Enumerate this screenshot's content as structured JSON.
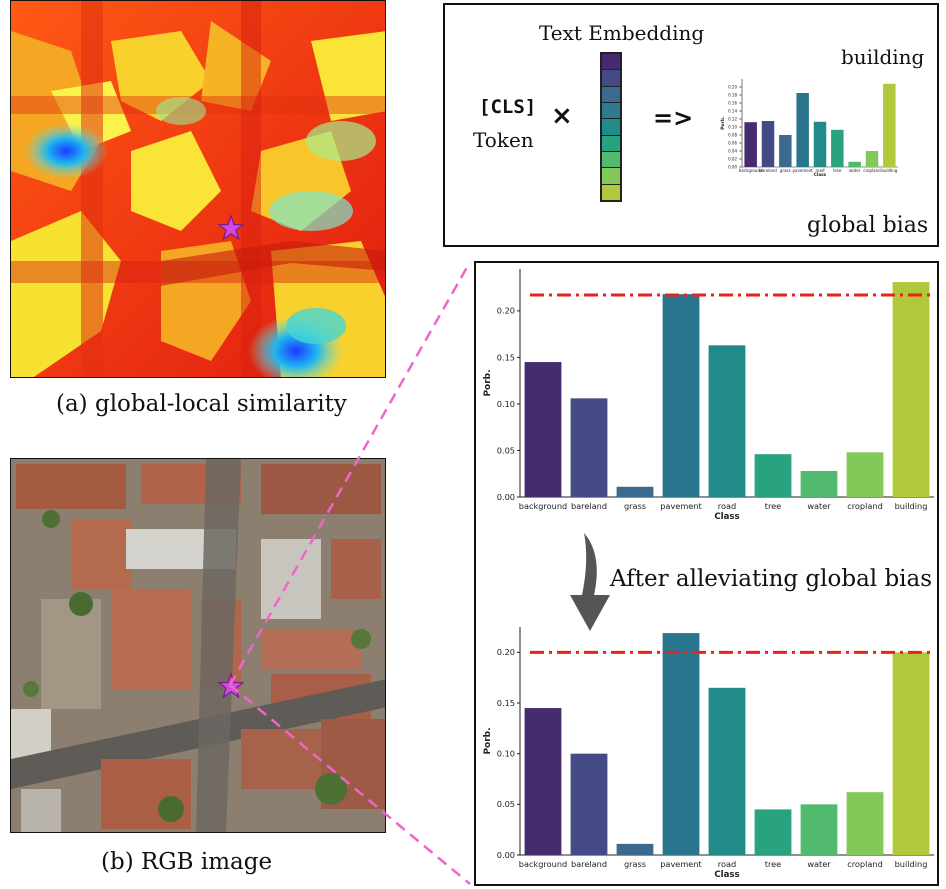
{
  "captions": {
    "global_local": "(a) global-local similarity",
    "rgb": "(b) RGB image"
  },
  "legend": {
    "text_embedding": "Text Embedding",
    "cls": "[CLS]",
    "token": "Token",
    "times": "×",
    "arrow": "=>",
    "building_label": "building",
    "global_bias": "global bias"
  },
  "after_label": "After alleviating global bias",
  "colors": {
    "dash_line": "#e8231b",
    "pink_dash": "#ee66c8",
    "star": "#d04ae0",
    "bars": [
      "#462c6e",
      "#434a85",
      "#3b6a8e",
      "#2a758e",
      "#218b89",
      "#28a27f",
      "#52ba6f",
      "#82c95a",
      "#b0c93a"
    ]
  },
  "chart_data": [
    {
      "type": "bar",
      "title": "building",
      "categories": [
        "background",
        "bareland",
        "grass",
        "pavement",
        "road",
        "tree",
        "water",
        "cropland",
        "building"
      ],
      "values": [
        0.112,
        0.115,
        0.08,
        0.185,
        0.113,
        0.093,
        0.013,
        0.04,
        0.208
      ],
      "xlabel": "Class",
      "ylabel": "Porb.",
      "ylim": [
        0,
        0.22
      ],
      "yticks": [
        "0.00",
        "0.02",
        "0.04",
        "0.06",
        "0.08",
        "0.10",
        "0.12",
        "0.14",
        "0.16",
        "0.18",
        "0.20"
      ],
      "threshold": null
    },
    {
      "type": "bar",
      "title": "",
      "categories": [
        "background",
        "bareland",
        "grass",
        "pavement",
        "road",
        "tree",
        "water",
        "cropland",
        "building"
      ],
      "values": [
        0.145,
        0.106,
        0.011,
        0.218,
        0.163,
        0.046,
        0.028,
        0.048,
        0.231
      ],
      "xlabel": "Class",
      "ylabel": "Porb.",
      "ylim": [
        0,
        0.245
      ],
      "yticks": [
        "0.00",
        "0.05",
        "0.10",
        "0.15",
        "0.20"
      ],
      "threshold": 0.217
    },
    {
      "type": "bar",
      "title": "",
      "categories": [
        "background",
        "bareland",
        "grass",
        "pavement",
        "road",
        "tree",
        "water",
        "cropland",
        "building"
      ],
      "values": [
        0.145,
        0.1,
        0.011,
        0.219,
        0.165,
        0.045,
        0.05,
        0.062,
        0.2
      ],
      "xlabel": "Class",
      "ylabel": "Porb.",
      "ylim": [
        0,
        0.225
      ],
      "yticks": [
        "0.00",
        "0.05",
        "0.10",
        "0.15",
        "0.20"
      ],
      "threshold": 0.2
    }
  ]
}
